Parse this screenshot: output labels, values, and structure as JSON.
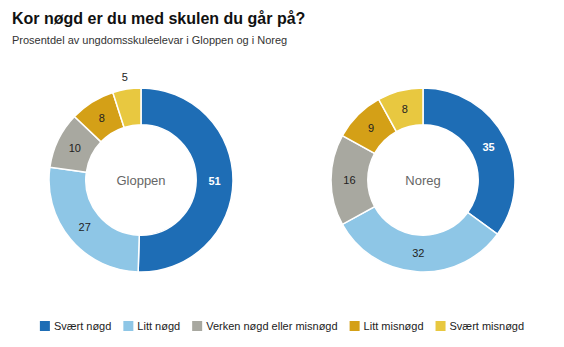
{
  "chart_data": {
    "type": "donut",
    "title": "Kor nøgd er du med skulen du går på?",
    "subtitle": "Prosentdel av ungdomsskuleelevar i Gloppen og i Noreg",
    "categories": [
      "Svært nøgd",
      "Litt nøgd",
      "Verken nøgd eller misnøgd",
      "Litt misnøgd",
      "Svært misnøgd"
    ],
    "colors": [
      "#1e6db5",
      "#8ec6e6",
      "#a8a8a0",
      "#d4a017",
      "#e8c840"
    ],
    "series": [
      {
        "name": "Gloppen",
        "values": [
          51,
          27,
          10,
          8,
          5
        ]
      },
      {
        "name": "Noreg",
        "values": [
          35,
          32,
          16,
          9,
          8
        ]
      }
    ],
    "data_labels": true,
    "legend": "bottom"
  }
}
